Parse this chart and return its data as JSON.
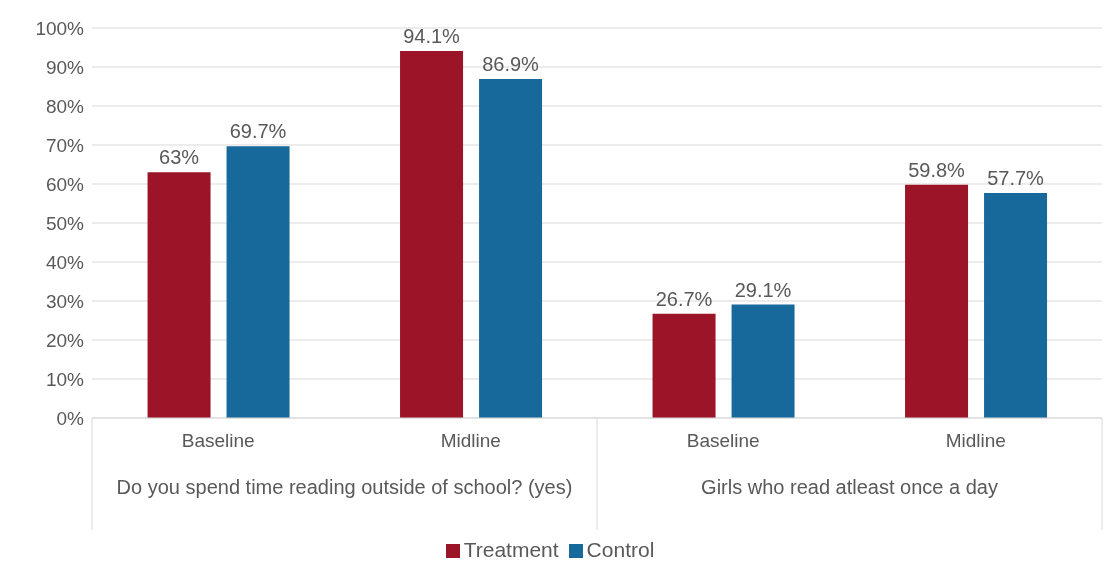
{
  "chart_data": {
    "type": "bar",
    "categories": [
      "Baseline",
      "Midline",
      "Baseline",
      "Midline"
    ],
    "annotations": [
      "Do you spend time reading outside of school? (yes)",
      "Girls who read atleast once a day"
    ],
    "series": [
      {
        "name": "Treatment",
        "color": "#9b1427",
        "values": [
          63,
          94.1,
          26.7,
          59.8
        ],
        "value_labels": [
          "63%",
          "94.1%",
          "26.7%",
          "59.8%"
        ]
      },
      {
        "name": "Control",
        "color": "#17699c",
        "values": [
          69.7,
          86.9,
          29.1,
          57.7
        ],
        "value_labels": [
          "69.7%",
          "86.9%",
          "29.1%",
          "57.7%"
        ]
      }
    ],
    "ylim": [
      0,
      100
    ],
    "yticks": [
      {
        "value": 0,
        "label": "0%"
      },
      {
        "value": 10,
        "label": "10%"
      },
      {
        "value": 20,
        "label": "20%"
      },
      {
        "value": 30,
        "label": "30%"
      },
      {
        "value": 40,
        "label": "40%"
      },
      {
        "value": 50,
        "label": "50%"
      },
      {
        "value": 60,
        "label": "60%"
      },
      {
        "value": 70,
        "label": "70%"
      },
      {
        "value": 80,
        "label": "80%"
      },
      {
        "value": 90,
        "label": "90%"
      },
      {
        "value": 100,
        "label": "100%"
      }
    ],
    "grid": "y",
    "legend": "bottom"
  }
}
